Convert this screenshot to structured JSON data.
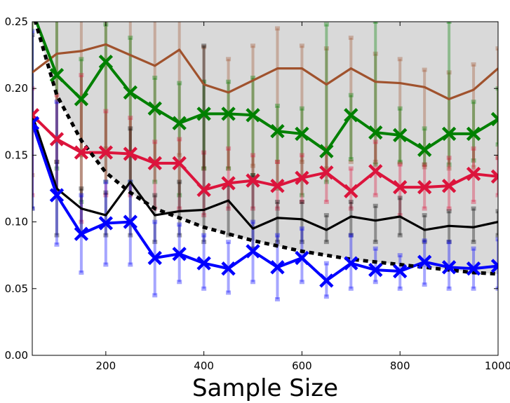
{
  "chart_data": {
    "type": "line",
    "title": "",
    "xlabel": "Sample Size",
    "ylabel": "",
    "xlim": [
      50,
      1000
    ],
    "ylim": [
      0.0,
      0.25
    ],
    "grid": false,
    "x_ticks": [
      200,
      400,
      600,
      800,
      1000
    ],
    "y_ticks": [
      0.0,
      0.05,
      0.1,
      0.15,
      0.2,
      0.25
    ],
    "x_tick_labels": [
      "200",
      "400",
      "600",
      "800",
      "1000"
    ],
    "y_tick_labels": [
      "0.00",
      "0.05",
      "0.10",
      "0.15",
      "0.20",
      "0.25"
    ],
    "bound_curve": {
      "style": "dashed",
      "color": "#000000",
      "x": [
        50,
        100,
        150,
        200,
        250,
        300,
        350,
        400,
        450,
        500,
        550,
        600,
        650,
        700,
        750,
        800,
        850,
        900,
        950,
        1000
      ],
      "y": [
        0.258,
        0.195,
        0.161,
        0.137,
        0.122,
        0.11,
        0.103,
        0.096,
        0.091,
        0.086,
        0.082,
        0.078,
        0.075,
        0.072,
        0.07,
        0.068,
        0.066,
        0.064,
        0.062,
        0.061
      ]
    },
    "series": [
      {
        "color": "#a0522d",
        "marker": "none",
        "x": [
          50,
          100,
          150,
          200,
          250,
          300,
          350,
          400,
          450,
          500,
          550,
          600,
          650,
          700,
          750,
          800,
          850,
          900,
          950,
          1000
        ],
        "y": [
          0.212,
          0.226,
          0.228,
          0.233,
          0.225,
          0.217,
          0.229,
          0.203,
          0.197,
          0.206,
          0.215,
          0.215,
          0.203,
          0.215,
          0.205,
          0.204,
          0.201,
          0.192,
          0.199,
          0.215
        ],
        "err_low": [
          0.135,
          0.145,
          0.15,
          0.155,
          0.15,
          0.145,
          0.15,
          0.14,
          0.14,
          0.142,
          0.145,
          0.145,
          0.14,
          0.145,
          0.145,
          0.144,
          0.141,
          0.14,
          0.141,
          0.148
        ],
        "err_high": [
          0.28,
          0.28,
          0.28,
          0.28,
          0.28,
          0.28,
          0.28,
          0.231,
          0.222,
          0.232,
          0.245,
          0.232,
          0.23,
          0.238,
          0.226,
          0.222,
          0.214,
          0.212,
          0.218,
          0.23
        ]
      },
      {
        "color": "#008000",
        "marker": "x",
        "x": [
          50,
          100,
          150,
          200,
          250,
          300,
          350,
          400,
          450,
          500,
          550,
          600,
          650,
          700,
          750,
          800,
          850,
          900,
          950,
          1000
        ],
        "y": [
          0.258,
          0.21,
          0.192,
          0.22,
          0.197,
          0.185,
          0.174,
          0.181,
          0.181,
          0.18,
          0.168,
          0.166,
          0.153,
          0.18,
          0.167,
          0.165,
          0.154,
          0.166,
          0.166,
          0.177
        ],
        "err_low": [
          0.18,
          0.14,
          0.115,
          0.13,
          0.13,
          0.13,
          0.12,
          0.14,
          0.14,
          0.135,
          0.125,
          0.12,
          0.13,
          0.147,
          0.143,
          0.145,
          0.143,
          0.143,
          0.146,
          0.158
        ],
        "err_high": [
          0.28,
          0.28,
          0.222,
          0.248,
          0.238,
          0.208,
          0.204,
          0.205,
          0.205,
          0.208,
          0.187,
          0.185,
          0.248,
          0.195,
          0.25,
          0.185,
          0.17,
          0.25,
          0.19,
          0.2
        ]
      },
      {
        "color": "#dc143c",
        "marker": "x",
        "x": [
          50,
          100,
          150,
          200,
          250,
          300,
          350,
          400,
          450,
          500,
          550,
          600,
          650,
          700,
          750,
          800,
          850,
          900,
          950,
          1000
        ],
        "y": [
          0.18,
          0.162,
          0.152,
          0.152,
          0.151,
          0.144,
          0.144,
          0.124,
          0.129,
          0.131,
          0.127,
          0.133,
          0.137,
          0.123,
          0.138,
          0.126,
          0.126,
          0.127,
          0.136,
          0.134
        ],
        "err_low": [
          0.12,
          0.12,
          0.1,
          0.12,
          0.12,
          0.11,
          0.11,
          0.105,
          0.11,
          0.11,
          0.11,
          0.115,
          0.115,
          0.11,
          0.12,
          0.105,
          0.11,
          0.11,
          0.115,
          0.12
        ],
        "err_high": [
          0.2,
          0.195,
          0.21,
          0.183,
          0.178,
          0.16,
          0.162,
          0.152,
          0.155,
          0.15,
          0.145,
          0.15,
          0.155,
          0.14,
          0.16,
          0.143,
          0.143,
          0.148,
          0.155,
          0.148
        ]
      },
      {
        "color": "#000000",
        "marker": "none",
        "x": [
          50,
          100,
          150,
          200,
          250,
          300,
          350,
          400,
          450,
          500,
          550,
          600,
          650,
          700,
          750,
          800,
          850,
          900,
          950,
          1000
        ],
        "y": [
          0.18,
          0.125,
          0.11,
          0.105,
          0.13,
          0.105,
          0.108,
          0.109,
          0.116,
          0.095,
          0.103,
          0.102,
          0.094,
          0.104,
          0.101,
          0.104,
          0.094,
          0.097,
          0.096,
          0.1
        ],
        "err_low": [
          0.11,
          0.09,
          0.09,
          0.09,
          0.09,
          0.085,
          0.09,
          0.085,
          0.09,
          0.08,
          0.085,
          0.085,
          0.085,
          0.09,
          0.085,
          0.09,
          0.085,
          0.085,
          0.085,
          0.09
        ],
        "err_high": [
          0.24,
          0.145,
          0.125,
          0.122,
          0.17,
          0.12,
          0.13,
          0.232,
          0.128,
          0.135,
          0.115,
          0.115,
          0.105,
          0.115,
          0.112,
          0.118,
          0.105,
          0.108,
          0.11,
          0.108
        ]
      },
      {
        "color": "#0000ff",
        "marker": "x",
        "x": [
          50,
          100,
          150,
          200,
          250,
          300,
          350,
          400,
          450,
          500,
          550,
          600,
          650,
          700,
          750,
          800,
          850,
          900,
          950,
          1000
        ],
        "y": [
          0.174,
          0.12,
          0.091,
          0.099,
          0.1,
          0.073,
          0.076,
          0.069,
          0.065,
          0.078,
          0.066,
          0.073,
          0.056,
          0.069,
          0.064,
          0.063,
          0.07,
          0.066,
          0.065,
          0.067
        ],
        "err_low": [
          0.11,
          0.083,
          0.062,
          0.068,
          0.068,
          0.045,
          0.055,
          0.05,
          0.047,
          0.055,
          0.042,
          0.055,
          0.044,
          0.05,
          0.055,
          0.05,
          0.053,
          0.05,
          0.05,
          0.05
        ],
        "err_high": [
          0.243,
          0.19,
          0.12,
          0.13,
          0.13,
          0.1,
          0.098,
          0.09,
          0.085,
          0.1,
          0.09,
          0.095,
          0.069,
          0.09,
          0.08,
          0.075,
          0.086,
          0.085,
          0.08,
          0.087
        ]
      }
    ]
  }
}
